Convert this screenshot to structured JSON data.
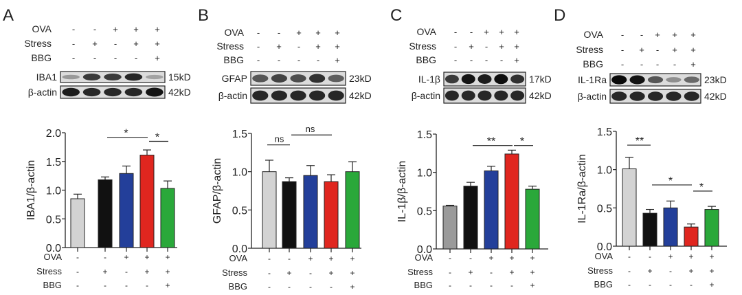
{
  "conditions": {
    "row_labels": [
      "OVA",
      "Stress",
      "BBG"
    ],
    "OVA": [
      "-",
      "-",
      "+",
      "+",
      "+"
    ],
    "Stress": [
      "-",
      "+",
      "-",
      "+",
      "+"
    ],
    "BBG": [
      "-",
      "-",
      "-",
      "-",
      "+"
    ]
  },
  "colors": [
    "#d3d3d3",
    "#111111",
    "#233f9a",
    "#e0261f",
    "#2aa83a"
  ],
  "chart_data": [
    {
      "panel": "A",
      "type": "bar",
      "protein": "IBA1",
      "protein_kd": "15kD",
      "actin": "β-actin",
      "actin_kd": "42kD",
      "ylabel": "IBA1/β-actin",
      "ylim": [
        0,
        2.0
      ],
      "ticks": [
        "0.0",
        "0.5",
        "1.0",
        "1.5",
        "2.0"
      ],
      "tick_values": [
        0,
        0.5,
        1,
        1.5,
        2
      ],
      "values": [
        0.85,
        1.18,
        1.29,
        1.61,
        1.03
      ],
      "errors": [
        0.08,
        0.05,
        0.13,
        0.09,
        0.13
      ],
      "significance": [
        {
          "from": 1,
          "to": 3,
          "y": 1.92,
          "label": "*"
        },
        {
          "from": 3,
          "to": 4,
          "y": 1.85,
          "label": "*"
        }
      ]
    },
    {
      "panel": "B",
      "type": "bar",
      "protein": "GFAP",
      "protein_kd": "23kD",
      "actin": "β-actin",
      "actin_kd": "42kD",
      "ylabel": "GFAP/β-actin",
      "ylim": [
        0,
        1.5
      ],
      "ticks": [
        "0.0",
        "0.5",
        "1.0",
        "1.5"
      ],
      "tick_values": [
        0,
        0.5,
        1,
        1.5
      ],
      "values": [
        1.0,
        0.87,
        0.95,
        0.87,
        1.0
      ],
      "errors": [
        0.15,
        0.05,
        0.13,
        0.09,
        0.13
      ],
      "significance": [
        {
          "from": 0,
          "to": 1,
          "y": 1.35,
          "label": "ns"
        },
        {
          "from": 1,
          "to": 3,
          "y": 1.48,
          "label": "ns"
        }
      ]
    },
    {
      "panel": "C",
      "type": "bar",
      "protein": "IL-1β",
      "protein_kd": "17kD",
      "actin": "β-actin",
      "actin_kd": "42kD",
      "ylabel": "IL-1β/β-actin",
      "ylim": [
        0,
        1.5
      ],
      "ticks": [
        "0.0",
        "0.5",
        "1.0",
        "1.5"
      ],
      "tick_values": [
        0,
        0.5,
        1,
        1.5
      ],
      "values": [
        0.56,
        0.82,
        1.02,
        1.24,
        0.78
      ],
      "errors": [
        0.01,
        0.05,
        0.06,
        0.05,
        0.04
      ],
      "significance": [
        {
          "from": 1,
          "to": 3,
          "y": 1.35,
          "label": "**"
        },
        {
          "from": 3,
          "to": 4,
          "y": 1.35,
          "label": "*"
        }
      ],
      "first_bar_color": "#9a9a9a"
    },
    {
      "panel": "D",
      "type": "bar",
      "protein": "IL-1Ra",
      "protein_kd": "23kD",
      "actin": "β-actin",
      "actin_kd": "42kD",
      "ylabel": "IL-1Ra/β-actin",
      "ylim": [
        0,
        1.5
      ],
      "ticks": [
        "0.0",
        "0.5",
        "1.0",
        "1.5"
      ],
      "tick_values": [
        0,
        0.5,
        1,
        1.5
      ],
      "values": [
        1.01,
        0.43,
        0.5,
        0.25,
        0.48
      ],
      "errors": [
        0.15,
        0.05,
        0.09,
        0.04,
        0.04
      ],
      "significance": [
        {
          "from": 0,
          "to": 1,
          "y": 1.32,
          "label": "**"
        },
        {
          "from": 1,
          "to": 3,
          "y": 0.8,
          "label": "*"
        },
        {
          "from": 3,
          "to": 4,
          "y": 0.72,
          "label": "*"
        }
      ]
    }
  ]
}
